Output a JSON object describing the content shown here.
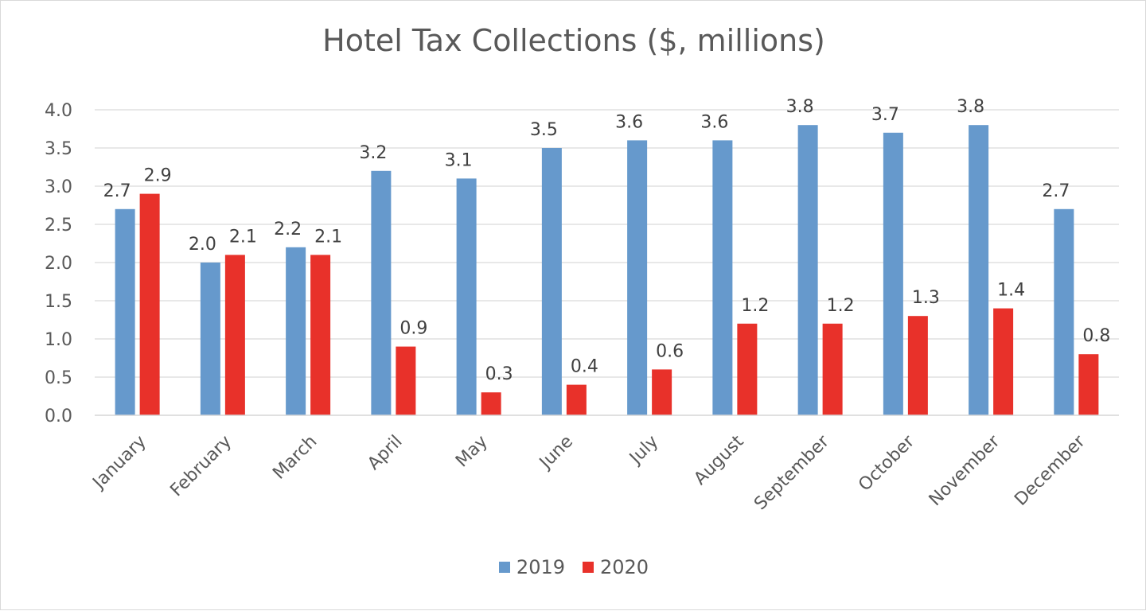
{
  "chart_data": {
    "type": "bar",
    "title": "Hotel Tax Collections ($, millions)",
    "categories": [
      "January",
      "February",
      "March",
      "April",
      "May",
      "June",
      "July",
      "August",
      "September",
      "October",
      "November",
      "December"
    ],
    "series": [
      {
        "name": "2019",
        "color": "#6699CC",
        "values": [
          2.7,
          2.0,
          2.2,
          3.2,
          3.1,
          3.5,
          3.6,
          3.6,
          3.8,
          3.7,
          3.8,
          2.7
        ]
      },
      {
        "name": "2020",
        "color": "#E8312A",
        "values": [
          2.9,
          2.1,
          2.1,
          0.9,
          0.3,
          0.4,
          0.6,
          1.2,
          1.2,
          1.3,
          1.4,
          0.8
        ]
      }
    ],
    "yticks": [
      "0.0",
      "0.5",
      "1.0",
      "1.5",
      "2.0",
      "2.5",
      "3.0",
      "3.5",
      "4.0"
    ],
    "ylim": [
      0,
      4.0
    ],
    "grid": true,
    "legend_position": "bottom",
    "data_labels": true
  }
}
